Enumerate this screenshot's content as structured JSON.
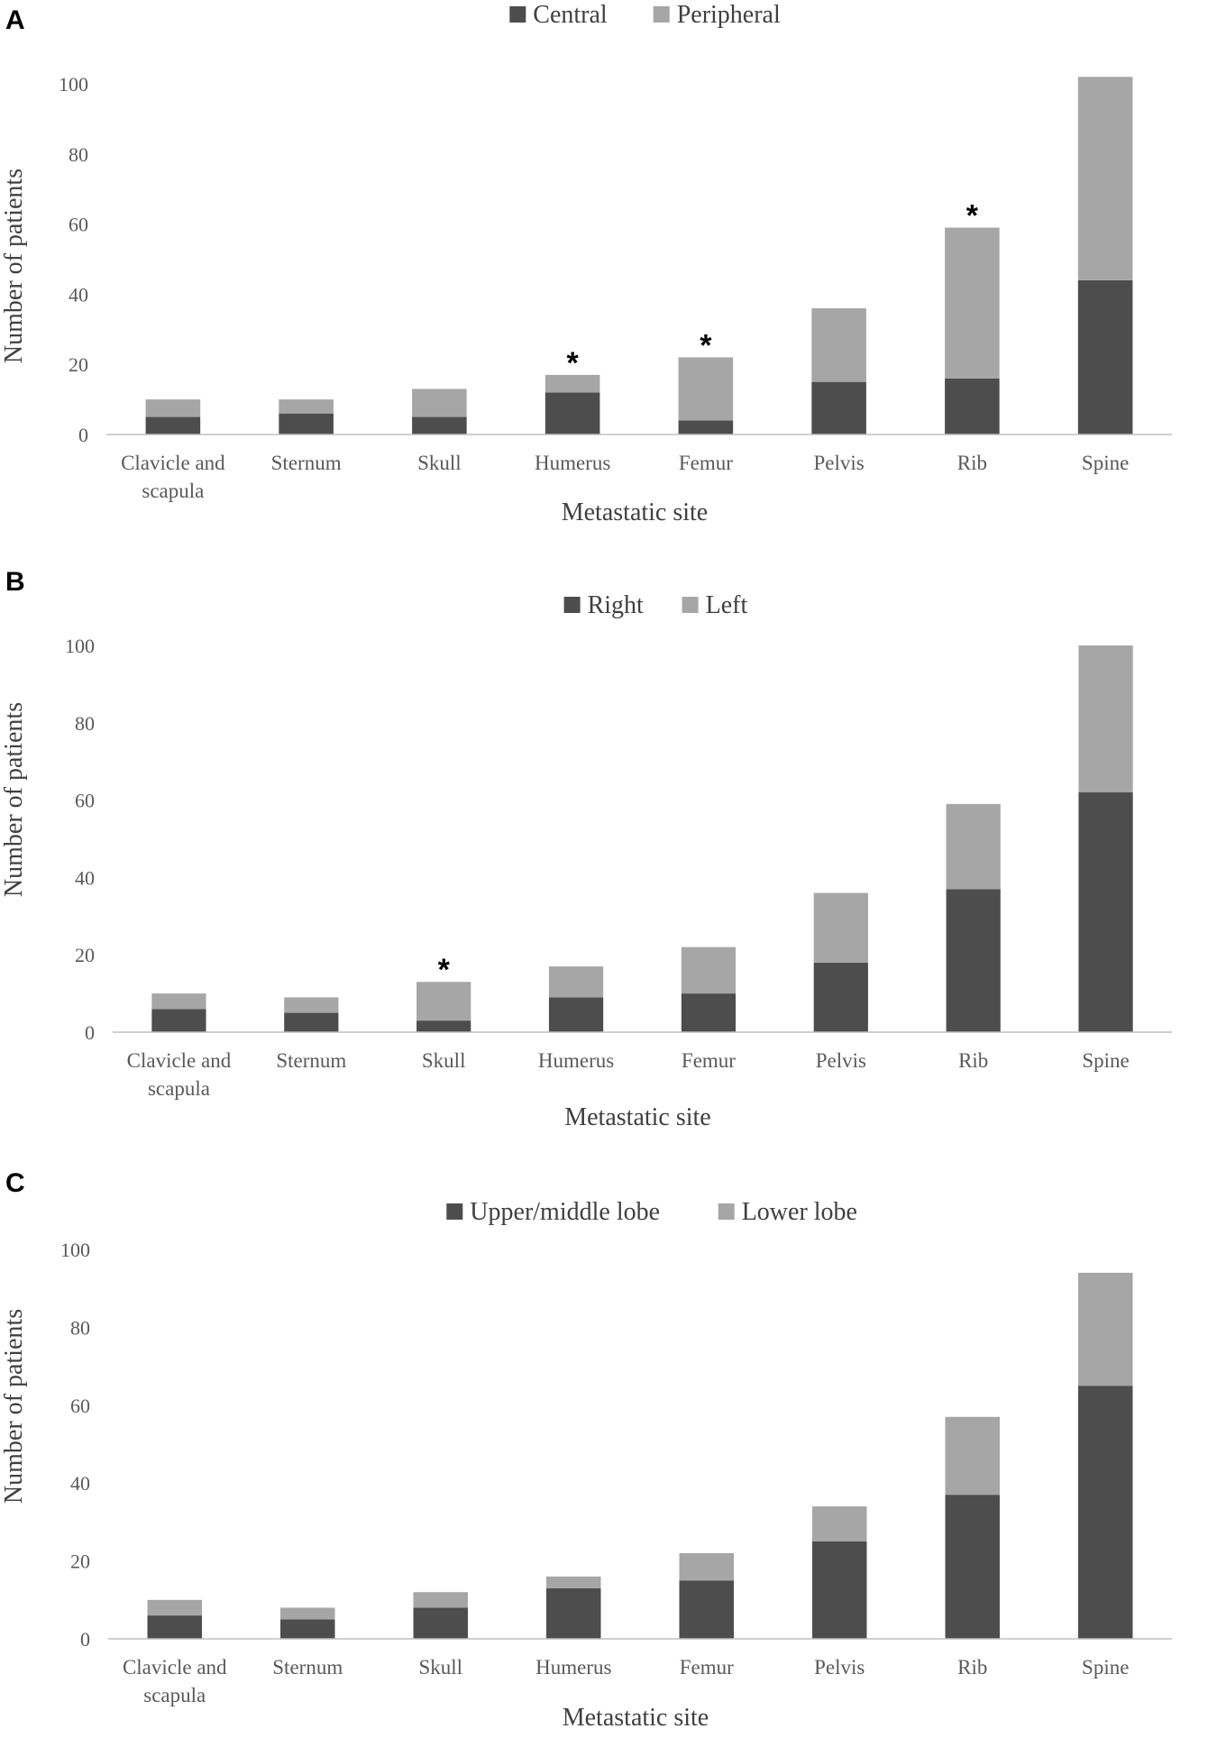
{
  "chart_data": [
    {
      "panel": "A",
      "type": "bar",
      "stacked": true,
      "categories": [
        "Clavicle and scapula",
        "Sternum",
        "Skull",
        "Humerus",
        "Femur",
        "Pelvis",
        "Rib",
        "Spine"
      ],
      "series": [
        {
          "name": "Central",
          "values": [
            5,
            6,
            5,
            12,
            4,
            15,
            16,
            44
          ],
          "color": "#4d4d4d"
        },
        {
          "name": "Peripheral",
          "values": [
            5,
            4,
            8,
            5,
            18,
            21,
            43,
            58
          ],
          "color": "#a6a6a6"
        }
      ],
      "significance": [
        "",
        "",
        "",
        "*",
        "*",
        "",
        "*",
        ""
      ],
      "xlabel": "Metastatic site",
      "ylabel": "Number of patients",
      "yticks": [
        0,
        20,
        40,
        60,
        80,
        100
      ],
      "ylim": [
        0,
        110
      ],
      "legend": "top-center"
    },
    {
      "panel": "B",
      "type": "bar",
      "stacked": true,
      "categories": [
        "Clavicle and scapula",
        "Sternum",
        "Skull",
        "Humerus",
        "Femur",
        "Pelvis",
        "Rib",
        "Spine"
      ],
      "series": [
        {
          "name": "Right",
          "values": [
            6,
            5,
            3,
            9,
            10,
            18,
            37,
            62
          ],
          "color": "#4d4d4d"
        },
        {
          "name": "Left",
          "values": [
            4,
            4,
            10,
            8,
            12,
            18,
            22,
            38
          ],
          "color": "#a6a6a6"
        }
      ],
      "significance": [
        "",
        "",
        "*",
        "",
        "",
        "",
        "",
        ""
      ],
      "xlabel": "Metastatic site",
      "ylabel": "Number of patients",
      "yticks": [
        0,
        20,
        40,
        60,
        80,
        100
      ],
      "ylim": [
        0,
        100
      ],
      "legend": "top-center"
    },
    {
      "panel": "C",
      "type": "bar",
      "stacked": true,
      "categories": [
        "Clavicle and scapula",
        "Sternum",
        "Skull",
        "Humerus",
        "Femur",
        "Pelvis",
        "Rib",
        "Spine"
      ],
      "series": [
        {
          "name": "Upper/middle lobe",
          "values": [
            6,
            5,
            8,
            13,
            15,
            25,
            37,
            65
          ],
          "color": "#4d4d4d"
        },
        {
          "name": "Lower lobe",
          "values": [
            4,
            3,
            4,
            3,
            7,
            9,
            20,
            29
          ],
          "color": "#a6a6a6"
        }
      ],
      "significance": [
        "",
        "",
        "",
        "",
        "",
        "",
        "",
        ""
      ],
      "xlabel": "Metastatic site",
      "ylabel": "Number of patients",
      "yticks": [
        0,
        20,
        40,
        60,
        80,
        100
      ],
      "ylim": [
        0,
        100
      ],
      "legend": "top-center"
    }
  ]
}
